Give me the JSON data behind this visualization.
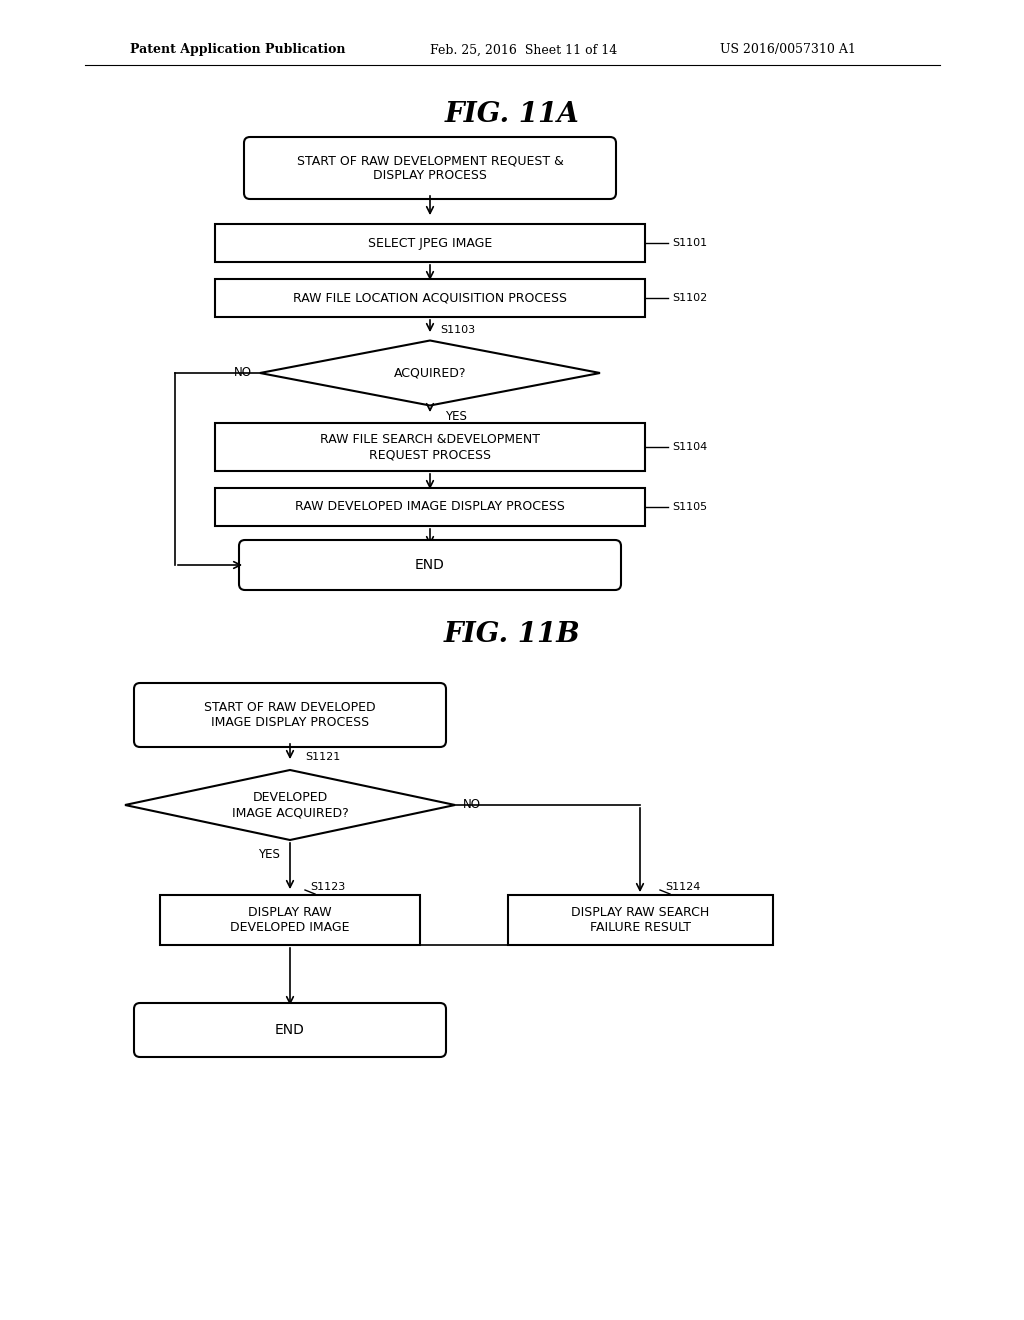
{
  "bg_color": "#ffffff",
  "header_left": "Patent Application Publication",
  "header_mid": "Feb. 25, 2016  Sheet 11 of 14",
  "header_right": "US 2016/0057310 A1",
  "fig11a_title": "FIG. 11A",
  "fig11b_title": "FIG. 11B",
  "font_color": "#000000",
  "line_color": "#000000"
}
